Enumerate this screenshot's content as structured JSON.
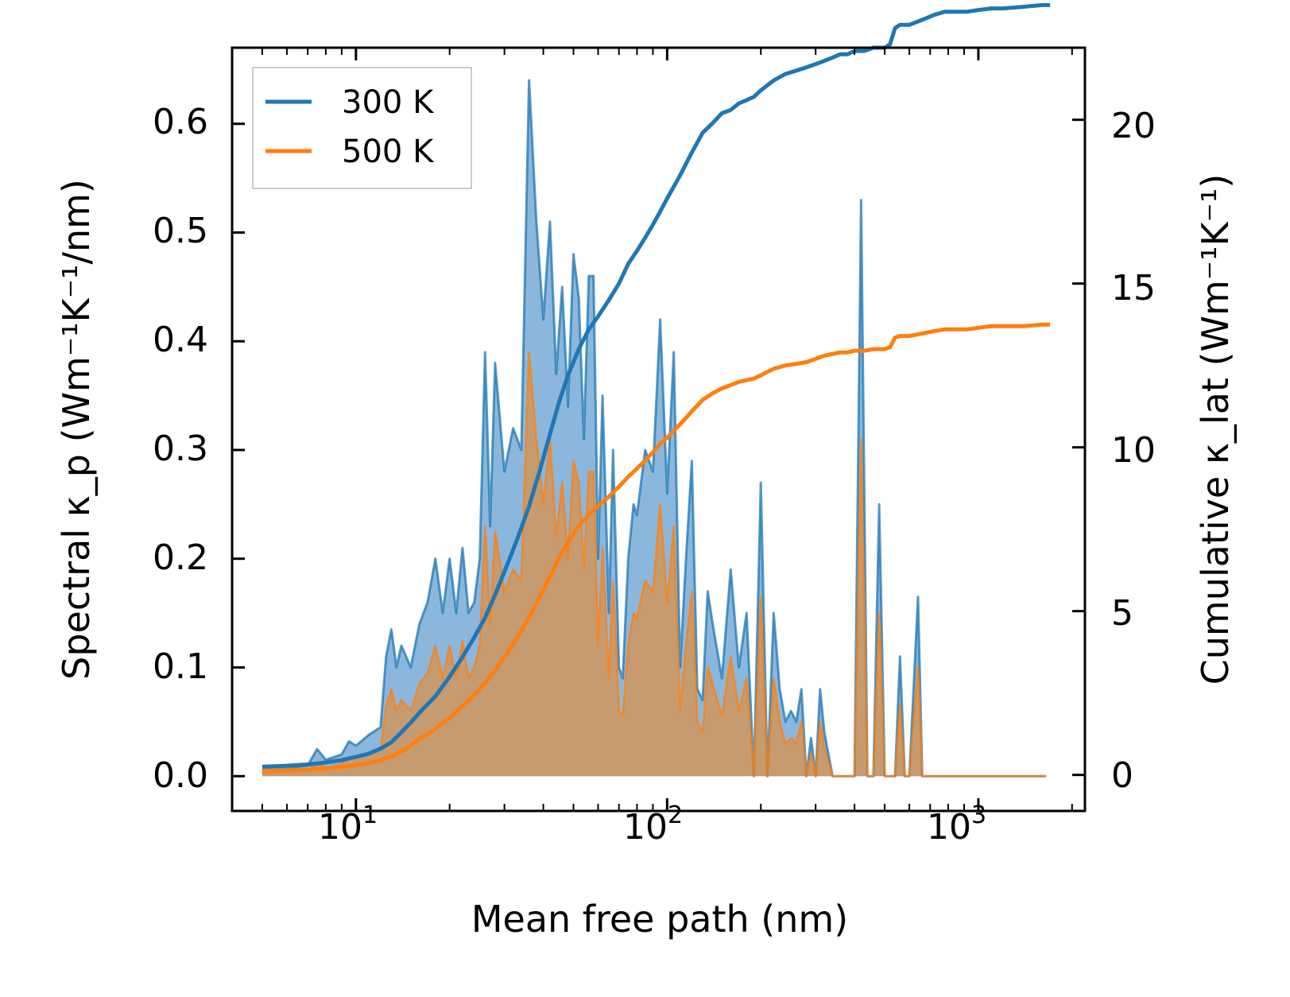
{
  "chart_data": {
    "type": "line",
    "title": "",
    "xlabel": "Mean free path (nm)",
    "ylabel_left": "Spectral κ_p (Wm⁻¹K⁻¹/nm)",
    "ylabel_right": "Cumulative κ_lat (Wm⁻¹K⁻¹)",
    "xscale": "log",
    "xlim": [
      4.0,
      2200
    ],
    "ylim_left": [
      -0.032,
      0.67
    ],
    "ylim_right": [
      -1.1,
      22.2
    ],
    "x_ticks": [
      10,
      100,
      1000
    ],
    "x_tick_labels": [
      "10",
      "10",
      "10"
    ],
    "x_tick_exponents": [
      "1",
      "2",
      "3"
    ],
    "y_ticks_left": [
      0.0,
      0.1,
      0.2,
      0.3,
      0.4,
      0.5,
      0.6
    ],
    "y_tick_labels_left": [
      "0.0",
      "0.1",
      "0.2",
      "0.3",
      "0.4",
      "0.5",
      "0.6"
    ],
    "y_ticks_right": [
      0,
      5,
      10,
      15,
      20
    ],
    "y_tick_labels_right": [
      "0",
      "5",
      "10",
      "15",
      "20"
    ],
    "legend": {
      "position": "top-left",
      "entries": [
        "300 K",
        "500 K"
      ]
    },
    "colors": {
      "s300": "#1f77b4",
      "s500": "#ff7f0e",
      "fill300": "#8bb7dc",
      "fill500": "#c69b6f"
    },
    "spectral": {
      "x": [
        5,
        6,
        7,
        7.5,
        8,
        9,
        9.5,
        10,
        11,
        12,
        12.5,
        13,
        13.5,
        14,
        15,
        16,
        17,
        18,
        19,
        20,
        21,
        22,
        23,
        24,
        25,
        26,
        27,
        28,
        30,
        32,
        34,
        36,
        38,
        40,
        42,
        44,
        46,
        48,
        50,
        52,
        54,
        56,
        58,
        60,
        62,
        65,
        67,
        70,
        72,
        75,
        78,
        80,
        85,
        90,
        95,
        100,
        105,
        110,
        115,
        120,
        125,
        130,
        135,
        140,
        150,
        160,
        170,
        180,
        190,
        200,
        210,
        220,
        230,
        240,
        250,
        260,
        270,
        280,
        290,
        300,
        310,
        320,
        340,
        360,
        380,
        400,
        420,
        440,
        460,
        480,
        500,
        520,
        540,
        560,
        580,
        600,
        640,
        660,
        680,
        720,
        760,
        780,
        800,
        900,
        1000,
        1050,
        1100,
        1200,
        1300,
        1400,
        1500,
        1550,
        1600,
        1650
      ],
      "y300": [
        0.006,
        0.007,
        0.01,
        0.025,
        0.015,
        0.02,
        0.032,
        0.028,
        0.038,
        0.045,
        0.11,
        0.135,
        0.1,
        0.12,
        0.1,
        0.14,
        0.16,
        0.2,
        0.15,
        0.2,
        0.15,
        0.21,
        0.15,
        0.16,
        0.2,
        0.39,
        0.23,
        0.38,
        0.28,
        0.32,
        0.3,
        0.64,
        0.51,
        0.42,
        0.51,
        0.37,
        0.45,
        0.34,
        0.48,
        0.44,
        0.31,
        0.46,
        0.46,
        0.2,
        0.35,
        0.15,
        0.3,
        0.1,
        0.09,
        0.2,
        0.25,
        0.24,
        0.3,
        0.28,
        0.42,
        0.26,
        0.39,
        0.1,
        0.2,
        0.29,
        0.08,
        0.07,
        0.17,
        0.14,
        0.09,
        0.19,
        0.1,
        0.15,
        0.0,
        0.27,
        0.0,
        0.15,
        0.08,
        0.05,
        0.06,
        0.05,
        0.08,
        0.0,
        0.035,
        0.0,
        0.08,
        0.04,
        0.0,
        0.0,
        0.0,
        0.0,
        0.53,
        0.0,
        0.0,
        0.25,
        0.0,
        0.0,
        0.0,
        0.11,
        0.0,
        0.0,
        0.165,
        0.0,
        0.0,
        0.0,
        0.0,
        0.0,
        0.0,
        0.0,
        0.0,
        0.0,
        0.0,
        0.0,
        0.0,
        0.0,
        0.0,
        0.0,
        0.0,
        0.0
      ],
      "y500": [
        0.003,
        0.004,
        0.005,
        0.012,
        0.008,
        0.011,
        0.018,
        0.015,
        0.021,
        0.025,
        0.065,
        0.08,
        0.06,
        0.07,
        0.06,
        0.085,
        0.095,
        0.12,
        0.09,
        0.12,
        0.09,
        0.125,
        0.09,
        0.1,
        0.12,
        0.23,
        0.14,
        0.225,
        0.17,
        0.19,
        0.18,
        0.39,
        0.31,
        0.25,
        0.31,
        0.22,
        0.27,
        0.2,
        0.29,
        0.27,
        0.19,
        0.28,
        0.28,
        0.12,
        0.21,
        0.09,
        0.18,
        0.06,
        0.055,
        0.12,
        0.15,
        0.145,
        0.18,
        0.17,
        0.25,
        0.16,
        0.23,
        0.06,
        0.12,
        0.17,
        0.05,
        0.04,
        0.1,
        0.085,
        0.055,
        0.11,
        0.06,
        0.09,
        0.0,
        0.165,
        0.0,
        0.09,
        0.05,
        0.03,
        0.035,
        0.03,
        0.05,
        0.0,
        0.021,
        0.0,
        0.05,
        0.025,
        0.0,
        0.0,
        0.0,
        0.0,
        0.31,
        0.0,
        0.0,
        0.15,
        0.0,
        0.0,
        0.0,
        0.065,
        0.0,
        0.0,
        0.1,
        0.0,
        0.0,
        0.0,
        0.0,
        0.0,
        0.0,
        0.0,
        0.0,
        0.0,
        0.0,
        0.0,
        0.0,
        0.0,
        0.0,
        0.0,
        0.0,
        0.0
      ]
    },
    "cumulative": {
      "x300": [
        5,
        6,
        7,
        8,
        9,
        10,
        11,
        12,
        13,
        14,
        15,
        16,
        18,
        20,
        22,
        24,
        26,
        28,
        30,
        33,
        36,
        39,
        42,
        45,
        48,
        52,
        56,
        60,
        65,
        70,
        75,
        80,
        85,
        90,
        95,
        100,
        110,
        120,
        130,
        140,
        150,
        160,
        170,
        180,
        190,
        200,
        220,
        240,
        260,
        280,
        300,
        320,
        340,
        360,
        380,
        400,
        430,
        460,
        500,
        520,
        540,
        560,
        600,
        640,
        680,
        720,
        780,
        850,
        920,
        1000,
        1100,
        1200,
        1400,
        1600,
        1700
      ],
      "y300": [
        0.25,
        0.28,
        0.32,
        0.38,
        0.45,
        0.55,
        0.65,
        0.8,
        1.0,
        1.3,
        1.6,
        1.9,
        2.4,
        3.0,
        3.6,
        4.2,
        4.8,
        5.5,
        6.2,
        7.2,
        8.2,
        9.3,
        10.4,
        11.4,
        12.2,
        13.0,
        13.6,
        14.0,
        14.5,
        15.0,
        15.6,
        16.0,
        16.4,
        16.8,
        17.2,
        17.6,
        18.3,
        19.0,
        19.6,
        19.9,
        20.2,
        20.3,
        20.5,
        20.6,
        20.7,
        20.9,
        21.2,
        21.4,
        21.5,
        21.6,
        21.7,
        21.8,
        21.9,
        22.0,
        22.0,
        22.1,
        22.1,
        22.2,
        22.2,
        22.3,
        22.8,
        22.9,
        22.9,
        23.0,
        23.1,
        23.2,
        23.3,
        23.3,
        23.3,
        23.35,
        23.4,
        23.4,
        23.45,
        23.5,
        23.5
      ],
      "x500": [
        5,
        6,
        7,
        8,
        9,
        10,
        11,
        12,
        13,
        14,
        15,
        16,
        18,
        20,
        22,
        24,
        26,
        28,
        30,
        33,
        36,
        39,
        42,
        45,
        48,
        52,
        56,
        60,
        65,
        70,
        75,
        80,
        85,
        90,
        95,
        100,
        110,
        120,
        130,
        140,
        150,
        160,
        170,
        180,
        190,
        200,
        220,
        240,
        260,
        280,
        300,
        320,
        340,
        360,
        380,
        400,
        430,
        460,
        500,
        520,
        540,
        560,
        600,
        640,
        680,
        720,
        780,
        850,
        920,
        1000,
        1100,
        1200,
        1400,
        1600,
        1700
      ],
      "y500": [
        0.12,
        0.14,
        0.17,
        0.2,
        0.25,
        0.3,
        0.36,
        0.45,
        0.56,
        0.72,
        0.9,
        1.1,
        1.4,
        1.75,
        2.1,
        2.45,
        2.8,
        3.2,
        3.6,
        4.2,
        4.8,
        5.45,
        6.05,
        6.65,
        7.1,
        7.6,
        7.95,
        8.2,
        8.5,
        8.8,
        9.1,
        9.35,
        9.6,
        9.85,
        10.1,
        10.3,
        10.7,
        11.1,
        11.45,
        11.65,
        11.8,
        11.9,
        12.0,
        12.05,
        12.1,
        12.2,
        12.4,
        12.5,
        12.55,
        12.6,
        12.7,
        12.8,
        12.85,
        12.9,
        12.9,
        12.95,
        12.95,
        13.0,
        13.0,
        13.05,
        13.35,
        13.4,
        13.4,
        13.45,
        13.5,
        13.55,
        13.6,
        13.6,
        13.6,
        13.65,
        13.7,
        13.7,
        13.7,
        13.75,
        13.75
      ]
    }
  }
}
